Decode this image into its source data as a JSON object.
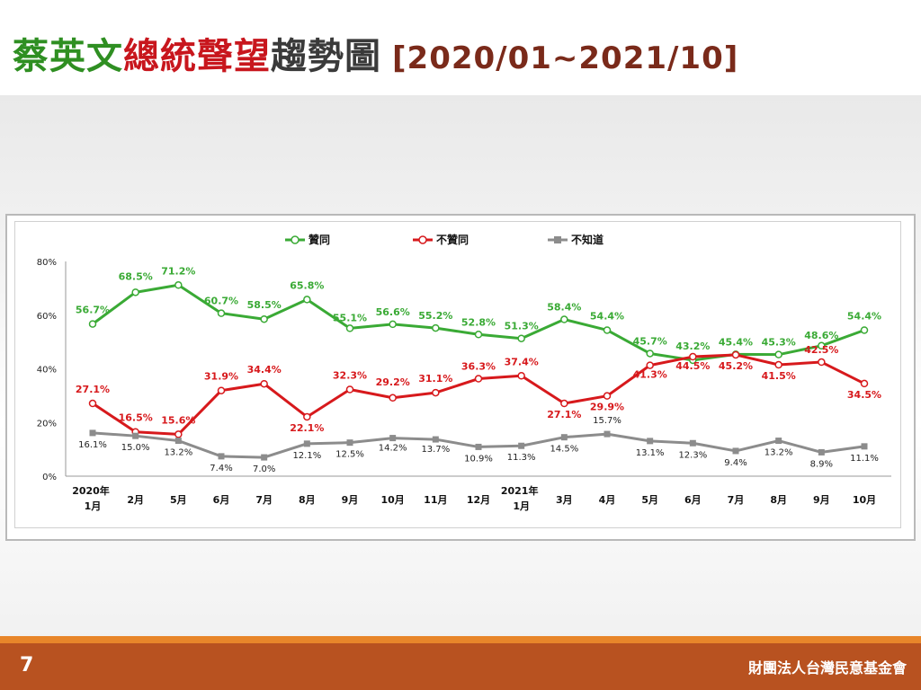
{
  "title": {
    "part1": "蔡英文",
    "part2": "總統聲望",
    "part3": "趨勢圖",
    "range": "[2020/01~2021/10]"
  },
  "footer": {
    "page_number": "7",
    "organization": "財團法人台灣民意基金會"
  },
  "colors": {
    "approve": "#3aaa35",
    "disapprove": "#d7191c",
    "unknown": "#8c8c8c",
    "title_green": "#2f8f22",
    "title_red": "#c8161d",
    "footer": "#b85220"
  },
  "chart_data": {
    "type": "line",
    "ylim": [
      0,
      80
    ],
    "yticks": [
      "0%",
      "20%",
      "40%",
      "60%",
      "80%"
    ],
    "ytick_values": [
      0,
      20,
      40,
      60,
      80
    ],
    "legend_position": "top",
    "categories": [
      [
        "2020年",
        "1月"
      ],
      [
        "",
        "2月"
      ],
      [
        "",
        "5月"
      ],
      [
        "",
        "6月"
      ],
      [
        "",
        "7月"
      ],
      [
        "",
        "8月"
      ],
      [
        "",
        "9月"
      ],
      [
        "",
        "10月"
      ],
      [
        "",
        "11月"
      ],
      [
        "",
        "12月"
      ],
      [
        "2021年",
        "1月"
      ],
      [
        "",
        "3月"
      ],
      [
        "",
        "4月"
      ],
      [
        "",
        "5月"
      ],
      [
        "",
        "6月"
      ],
      [
        "",
        "7月"
      ],
      [
        "",
        "8月"
      ],
      [
        "",
        "9月"
      ],
      [
        "",
        "10月"
      ]
    ],
    "series": [
      {
        "name": "贊同",
        "color": "#3aaa35",
        "values": [
          56.7,
          68.5,
          71.2,
          60.7,
          58.5,
          65.8,
          55.1,
          56.6,
          55.2,
          52.8,
          51.3,
          58.4,
          54.4,
          45.7,
          43.2,
          45.4,
          45.3,
          48.6,
          54.4
        ],
        "labels": [
          "56.7%",
          "68.5%",
          "71.2%",
          "60.7%",
          "58.5%",
          "65.8%",
          "55.1%",
          "56.6%",
          "55.2%",
          "52.8%",
          "51.3%",
          "58.4%",
          "54.4%",
          "45.7%",
          "43.2%",
          "45.4%",
          "45.3%",
          "48.6%",
          "54.4%"
        ]
      },
      {
        "name": "不贊同",
        "color": "#d7191c",
        "values": [
          27.1,
          16.5,
          15.6,
          31.9,
          34.4,
          22.1,
          32.3,
          29.2,
          31.1,
          36.3,
          37.4,
          27.1,
          29.9,
          41.3,
          44.5,
          45.2,
          41.5,
          42.5,
          34.5
        ],
        "labels": [
          "27.1%",
          "16.5%",
          "15.6%",
          "31.9%",
          "34.4%",
          "22.1%",
          "32.3%",
          "29.2%",
          "31.1%",
          "36.3%",
          "37.4%",
          "27.1%",
          "29.9%",
          "41.3%",
          "44.5%",
          "45.2%",
          "41.5%",
          "42.5%",
          "34.5%"
        ]
      },
      {
        "name": "不知道",
        "color": "#8c8c8c",
        "values": [
          16.1,
          15.0,
          13.2,
          7.4,
          7.0,
          12.1,
          12.5,
          14.2,
          13.7,
          10.9,
          11.3,
          14.5,
          15.7,
          13.1,
          12.3,
          9.4,
          13.2,
          8.9,
          11.1
        ],
        "labels": [
          "16.1%",
          "15.0%",
          "13.2%",
          "7.4%",
          "7.0%",
          "12.1%",
          "12.5%",
          "14.2%",
          "13.7%",
          "10.9%",
          "11.3%",
          "14.5%",
          "15.7%",
          "13.1%",
          "12.3%",
          "9.4%",
          "13.2%",
          "8.9%",
          "11.1%"
        ]
      }
    ]
  }
}
